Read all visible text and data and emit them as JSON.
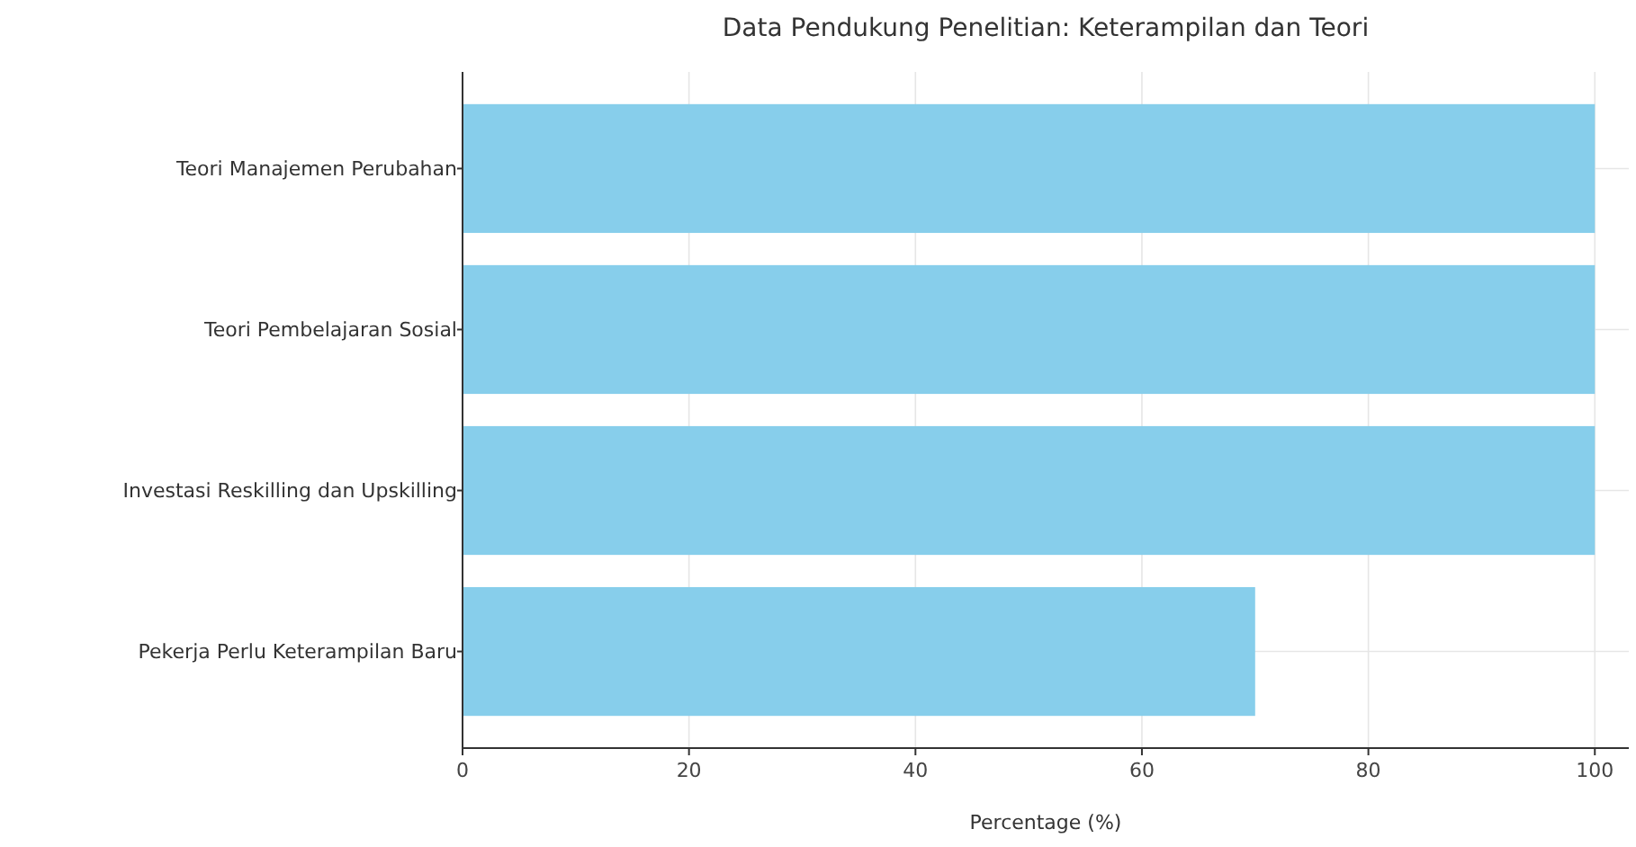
{
  "chart_data": {
    "type": "bar",
    "orientation": "horizontal",
    "title": "Data Pendukung Penelitian: Keterampilan dan Teori",
    "xlabel": "Percentage (%)",
    "categories": [
      "Teori Manajemen Perubahan",
      "Teori Pembelajaran Sosial",
      "Investasi Reskilling dan Upskilling",
      "Pekerja Perlu Keterampilan Baru"
    ],
    "values": [
      100,
      100,
      100,
      70
    ],
    "color": "#87ceeb",
    "xlim": [
      0,
      103
    ],
    "xticks": [
      0,
      20,
      40,
      60,
      80,
      100
    ],
    "grid": true
  }
}
